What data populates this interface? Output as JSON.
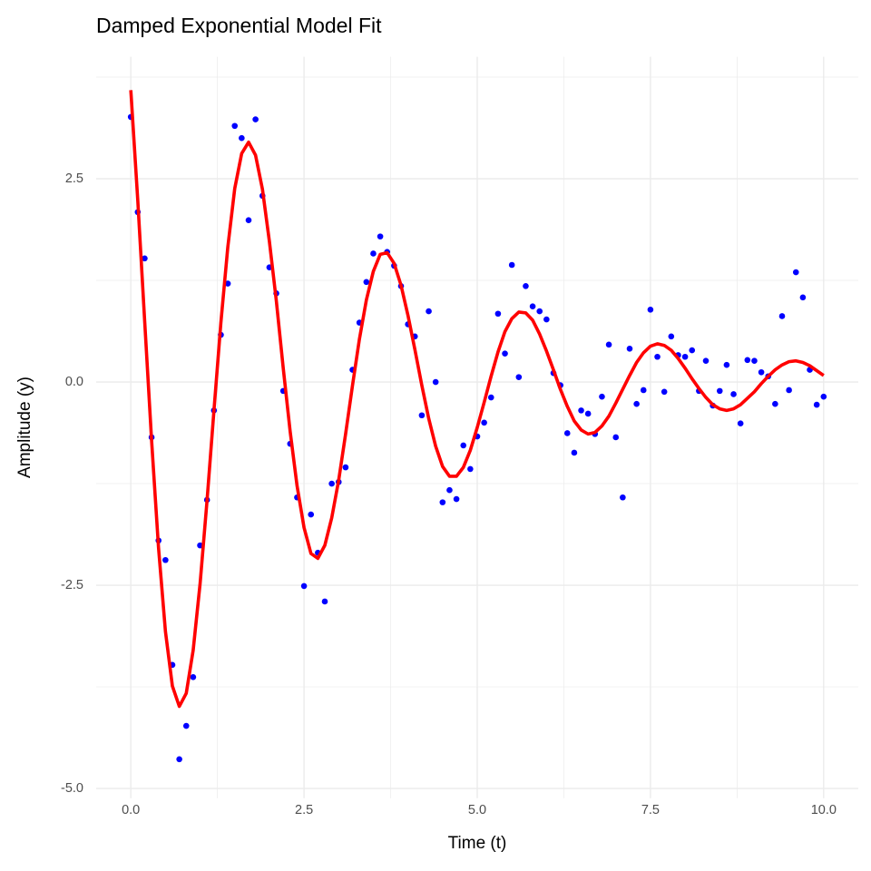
{
  "chart_data": {
    "type": "scatter",
    "title": "Damped Exponential Model Fit",
    "x_label": "Time (t)",
    "y_label": "Amplitude (y)",
    "x": [
      0,
      0.1,
      0.2,
      0.3,
      0.4,
      0.5,
      0.6,
      0.7,
      0.8,
      0.9,
      1,
      1.1,
      1.2,
      1.3,
      1.4,
      1.5,
      1.6,
      1.7,
      1.8,
      1.9,
      2,
      2.1,
      2.2,
      2.3,
      2.4,
      2.5,
      2.6,
      2.7,
      2.8,
      2.9,
      3,
      3.1,
      3.2,
      3.3,
      3.4,
      3.5,
      3.6,
      3.7,
      3.8,
      3.9,
      4,
      4.1,
      4.2,
      4.3,
      4.4,
      4.5,
      4.6,
      4.7,
      4.8,
      4.9,
      5,
      5.1,
      5.2,
      5.3,
      5.4,
      5.5,
      5.6,
      5.7,
      5.8,
      5.9,
      6,
      6.1,
      6.2,
      6.3,
      6.4,
      6.5,
      6.6,
      6.7,
      6.8,
      6.9,
      7,
      7.1,
      7.2,
      7.3,
      7.4,
      7.5,
      7.6,
      7.7,
      7.8,
      7.9,
      8,
      8.1,
      8.2,
      8.3,
      8.4,
      8.5,
      8.6,
      8.7,
      8.8,
      8.9,
      9,
      9.1,
      9.2,
      9.3,
      9.4,
      9.5,
      9.6,
      9.7,
      9.8,
      9.9,
      10
    ],
    "series": [
      {
        "type": "scatter",
        "color": "#0000ff",
        "values": [
          3.26,
          2.09,
          1.52,
          -0.68,
          -1.95,
          -2.19,
          -3.48,
          -4.64,
          -4.23,
          -3.63,
          -2.01,
          -1.45,
          -0.35,
          0.58,
          1.21,
          3.15,
          3.0,
          1.99,
          3.23,
          2.29,
          1.41,
          1.09,
          -0.11,
          -0.76,
          -1.42,
          -2.51,
          -1.63,
          -2.1,
          -2.7,
          -1.25,
          -1.23,
          -1.05,
          0.15,
          0.73,
          1.23,
          1.58,
          1.79,
          1.6,
          1.43,
          1.18,
          0.71,
          0.56,
          -0.41,
          0.87,
          0.0,
          -1.48,
          -1.33,
          -1.44,
          -0.78,
          -1.07,
          -0.67,
          -0.5,
          -0.19,
          0.84,
          0.35,
          1.44,
          0.06,
          1.18,
          0.93,
          0.87,
          0.77,
          0.11,
          -0.04,
          -0.63,
          -0.87,
          -0.35,
          -0.39,
          -0.64,
          -0.18,
          0.46,
          -0.68,
          -1.42,
          0.41,
          -0.27,
          -0.1,
          0.89,
          0.31,
          -0.12,
          0.56,
          0.33,
          0.31,
          0.39,
          -0.11,
          0.26,
          -0.29,
          -0.11,
          0.21,
          -0.15,
          -0.51,
          0.27,
          0.26,
          0.12,
          0.07,
          -0.27,
          0.81,
          -0.1,
          1.35,
          1.04,
          0.15,
          -0.28,
          -0.18
        ]
      },
      {
        "type": "line",
        "color": "#ff0000",
        "values": [
          3.59,
          2.24,
          0.75,
          -0.72,
          -2.04,
          -3.07,
          -3.74,
          -3.99,
          -3.83,
          -3.3,
          -2.48,
          -1.46,
          -0.35,
          0.73,
          1.66,
          2.38,
          2.81,
          2.95,
          2.79,
          2.37,
          1.73,
          1.0,
          0.17,
          -0.61,
          -1.28,
          -1.79,
          -2.11,
          -2.17,
          -2.01,
          -1.67,
          -1.21,
          -0.64,
          -0.04,
          0.53,
          1.01,
          1.36,
          1.57,
          1.59,
          1.46,
          1.19,
          0.82,
          0.4,
          -0.04,
          -0.45,
          -0.79,
          -1.04,
          -1.16,
          -1.16,
          -1.05,
          -0.84,
          -0.56,
          -0.25,
          0.07,
          0.37,
          0.62,
          0.78,
          0.86,
          0.85,
          0.76,
          0.59,
          0.38,
          0.15,
          -0.09,
          -0.3,
          -0.48,
          -0.59,
          -0.64,
          -0.62,
          -0.54,
          -0.42,
          -0.26,
          -0.09,
          0.08,
          0.24,
          0.36,
          0.44,
          0.47,
          0.45,
          0.39,
          0.29,
          0.17,
          0.04,
          -0.08,
          -0.19,
          -0.28,
          -0.33,
          -0.35,
          -0.33,
          -0.28,
          -0.2,
          -0.12,
          -0.02,
          0.07,
          0.15,
          0.21,
          0.25,
          0.26,
          0.24,
          0.2,
          0.14,
          0.08
        ]
      }
    ],
    "xlim": [
      -0.5,
      10.5
    ],
    "ylim": [
      -5.12,
      4.0
    ],
    "xticks": [
      {
        "value": 0,
        "label": "0.0"
      },
      2.5,
      {
        "value": 5,
        "label": "5.0"
      },
      7.5,
      {
        "value": 10,
        "label": "10.0"
      }
    ],
    "yticks": [
      {
        "value": -5,
        "label": "-5.0"
      },
      -2.5,
      {
        "value": 0,
        "label": "0.0"
      },
      2.5
    ],
    "xminor": [
      1.25,
      3.75,
      6.25,
      8.75
    ],
    "yminor": [
      -3.75,
      -1.25,
      1.25,
      3.75
    ],
    "grid": true
  }
}
